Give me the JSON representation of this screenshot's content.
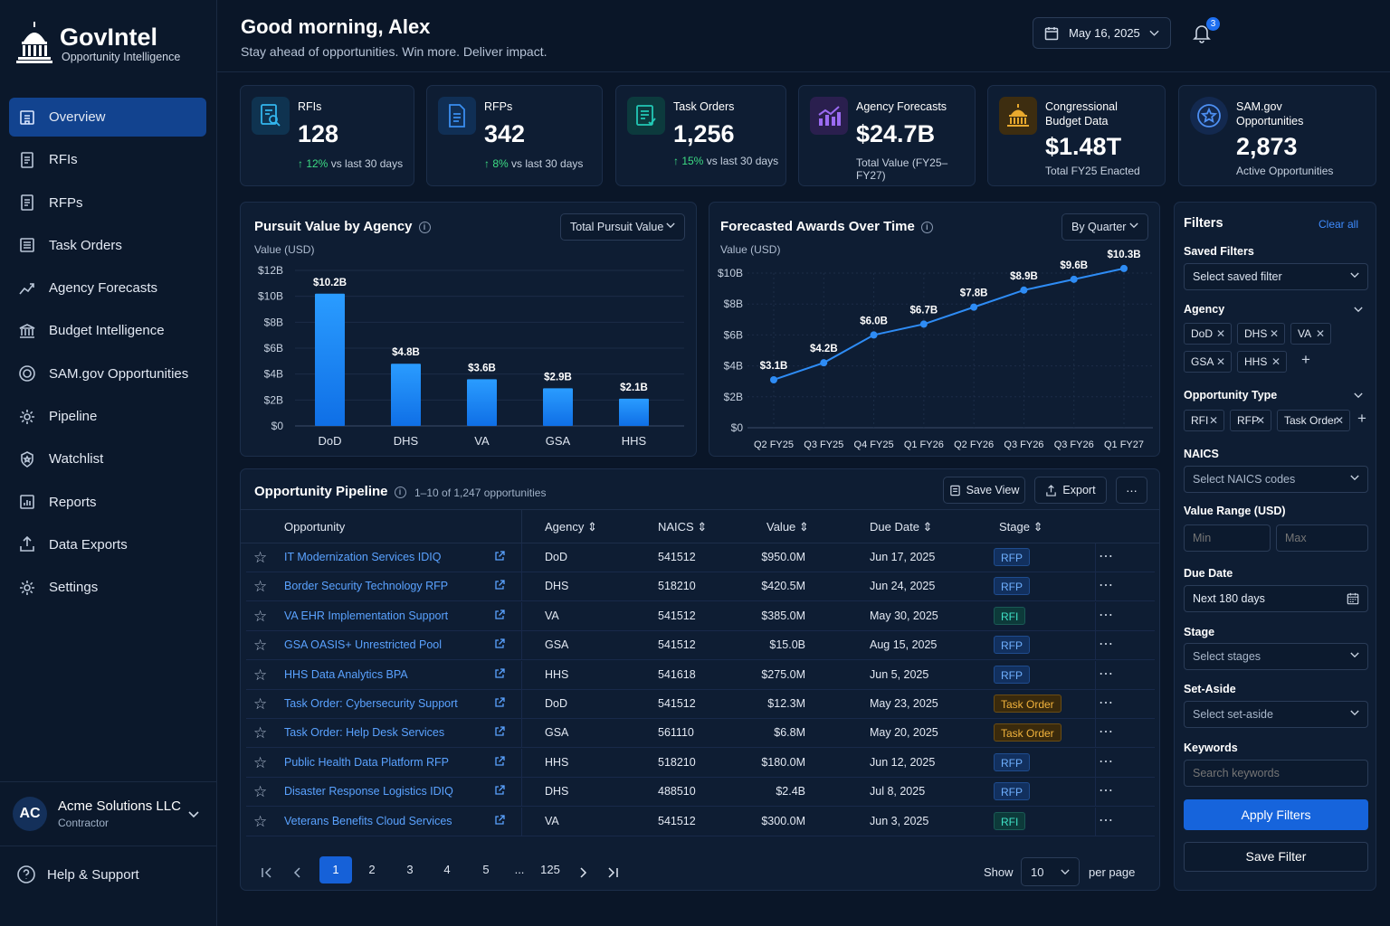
{
  "app": {
    "name": "GovIntel",
    "tagline": "Opportunity Intelligence"
  },
  "nav": [
    {
      "label": "Overview",
      "icon": "building-icon",
      "active": true
    },
    {
      "label": "RFIs",
      "icon": "document-icon"
    },
    {
      "label": "RFPs",
      "icon": "document-icon"
    },
    {
      "label": "Task Orders",
      "icon": "list-icon"
    },
    {
      "label": "Agency Forecasts",
      "icon": "trend-icon"
    },
    {
      "label": "Budget Intelligence",
      "icon": "bank-icon"
    },
    {
      "label": "SAM.gov Opportunities",
      "icon": "seal-icon"
    },
    {
      "label": "Pipeline",
      "icon": "gear-icon"
    },
    {
      "label": "Watchlist",
      "icon": "star-shield-icon"
    },
    {
      "label": "Reports",
      "icon": "report-icon"
    },
    {
      "label": "Data Exports",
      "icon": "export-icon"
    },
    {
      "label": "Settings",
      "icon": "gear-icon"
    }
  ],
  "account": {
    "initials": "AC",
    "name": "Acme Solutions LLC",
    "role": "Contractor"
  },
  "help": {
    "label": "Help & Support"
  },
  "header": {
    "greeting": "Good morning, Alex",
    "subtitle": "Stay ahead of opportunities. Win more. Deliver impact.",
    "date": "May 16, 2025",
    "notifications": "3"
  },
  "kpis": [
    {
      "label": "RFIs",
      "value": "128",
      "change": "↑ 12%",
      "change_text": " vs last 30 days",
      "color": "#1e9bd6"
    },
    {
      "label": "RFPs",
      "value": "342",
      "change": "↑ 8%",
      "change_text": " vs last 30 days",
      "color": "#2f7de0"
    },
    {
      "label": "Task Orders",
      "value": "1,256",
      "change": "↑ 15%",
      "change_text": " vs last 30 days",
      "color": "#1ab8a8"
    },
    {
      "label": "Agency Forecasts",
      "value": "$24.7B",
      "change": "",
      "change_text": "Total Value (FY25–FY27)",
      "color": "#8a5ce6"
    },
    {
      "label": "Congressional Budget Data",
      "value": "$1.48T",
      "change": "",
      "change_text": "Total FY25 Enacted",
      "color": "#e0a030"
    },
    {
      "label": "SAM.gov Opportunities",
      "value": "2,873",
      "change": "",
      "change_text": "Active Opportunities",
      "color": "#3f7fe8"
    }
  ],
  "bar_panel": {
    "title": "Pursuit Value by Agency",
    "selector": "Total Pursuit Value"
  },
  "line_panel": {
    "title": "Forecasted Awards Over Time",
    "selector": "By Quarter"
  },
  "chart_data": [
    {
      "type": "bar",
      "title": "Pursuit Value by Agency",
      "ylabel": "Value (USD)",
      "categories": [
        "DoD",
        "DHS",
        "VA",
        "GSA",
        "HHS"
      ],
      "values": [
        10.2,
        4.8,
        3.6,
        2.9,
        2.1
      ],
      "data_labels": [
        "$10.2B",
        "$4.8B",
        "$3.6B",
        "$2.9B",
        "$2.1B"
      ],
      "ylim": [
        0,
        12
      ],
      "yticks": [
        "$0",
        "$2B",
        "$4B",
        "$6B",
        "$8B",
        "$10B",
        "$12B"
      ],
      "grid": true
    },
    {
      "type": "line",
      "title": "Forecasted Awards Over Time",
      "ylabel": "Value (USD)",
      "x": [
        "Q2 FY25",
        "Q3 FY25",
        "Q4 FY25",
        "Q1 FY26",
        "Q2 FY26",
        "Q3 FY26",
        "Q3 FY26",
        "Q1 FY27"
      ],
      "values": [
        3.1,
        4.2,
        6.0,
        6.7,
        7.8,
        8.9,
        9.6,
        10.3
      ],
      "data_labels": [
        "$3.1B",
        "$4.2B",
        "$6.0B",
        "$6.7B",
        "$7.8B",
        "$8.9B",
        "$9.6B",
        "$10.3B"
      ],
      "ylim": [
        0,
        10
      ],
      "yticks": [
        "$0",
        "$2B",
        "$4B",
        "$6B",
        "$8B",
        "$10B"
      ],
      "grid": true
    }
  ],
  "pipeline": {
    "title": "Opportunity Pipeline",
    "count": "1–10 of 1,247 opportunities",
    "save_view": "Save View",
    "export": "Export",
    "columns": [
      "Opportunity",
      "Agency",
      "NAICS",
      "Value",
      "Due Date",
      "Stage"
    ],
    "rows": [
      {
        "name": "IT Modernization Services IDIQ",
        "agency": "DoD",
        "naics": "541512",
        "value": "$950.0M",
        "due": "Jun 17, 2025",
        "stage": "RFP"
      },
      {
        "name": "Border Security Technology RFP",
        "agency": "DHS",
        "naics": "518210",
        "value": "$420.5M",
        "due": "Jun 24, 2025",
        "stage": "RFP"
      },
      {
        "name": "VA EHR Implementation Support",
        "agency": "VA",
        "naics": "541512",
        "value": "$385.0M",
        "due": "May 30, 2025",
        "stage": "RFI"
      },
      {
        "name": "GSA OASIS+ Unrestricted Pool",
        "agency": "GSA",
        "naics": "541512",
        "value": "$15.0B",
        "due": "Aug 15, 2025",
        "stage": "RFP"
      },
      {
        "name": "HHS Data Analytics BPA",
        "agency": "HHS",
        "naics": "541618",
        "value": "$275.0M",
        "due": "Jun 5, 2025",
        "stage": "RFP"
      },
      {
        "name": "Task Order: Cybersecurity Support",
        "agency": "DoD",
        "naics": "541512",
        "value": "$12.3M",
        "due": "May 23, 2025",
        "stage": "Task Order"
      },
      {
        "name": "Task Order: Help Desk Services",
        "agency": "GSA",
        "naics": "561110",
        "value": "$6.8M",
        "due": "May 20, 2025",
        "stage": "Task Order"
      },
      {
        "name": "Public Health Data Platform RFP",
        "agency": "HHS",
        "naics": "518210",
        "value": "$180.0M",
        "due": "Jun 12, 2025",
        "stage": "RFP"
      },
      {
        "name": "Disaster Response Logistics IDIQ",
        "agency": "DHS",
        "naics": "488510",
        "value": "$2.4B",
        "due": "Jul 8, 2025",
        "stage": "RFP"
      },
      {
        "name": "Veterans Benefits Cloud Services",
        "agency": "VA",
        "naics": "541512",
        "value": "$300.0M",
        "due": "Jun 3, 2025",
        "stage": "RFI"
      }
    ],
    "pages": [
      "1",
      "2",
      "3",
      "4",
      "5",
      "...",
      "125"
    ],
    "show_label": "Show",
    "per_page_value": "10",
    "per_page_label": "per page"
  },
  "filters": {
    "title": "Filters",
    "clear": "Clear all",
    "saved_label": "Saved Filters",
    "saved_placeholder": "Select saved filter",
    "agency_label": "Agency",
    "agency_chips": [
      "DoD",
      "DHS",
      "VA",
      "GSA",
      "HHS"
    ],
    "type_label": "Opportunity Type",
    "type_chips": [
      "RFI",
      "RFP",
      "Task Order"
    ],
    "naics_label": "NAICS",
    "naics_placeholder": "Select NAICS codes",
    "range_label": "Value Range (USD)",
    "min_placeholder": "Min",
    "max_placeholder": "Max",
    "due_label": "Due Date",
    "due_value": "Next 180 days",
    "stage_label": "Stage",
    "stage_placeholder": "Select stages",
    "setaside_label": "Set-Aside",
    "setaside_placeholder": "Select set-aside",
    "keywords_label": "Keywords",
    "keywords_placeholder": "Search keywords",
    "apply": "Apply Filters",
    "save": "Save Filter"
  }
}
